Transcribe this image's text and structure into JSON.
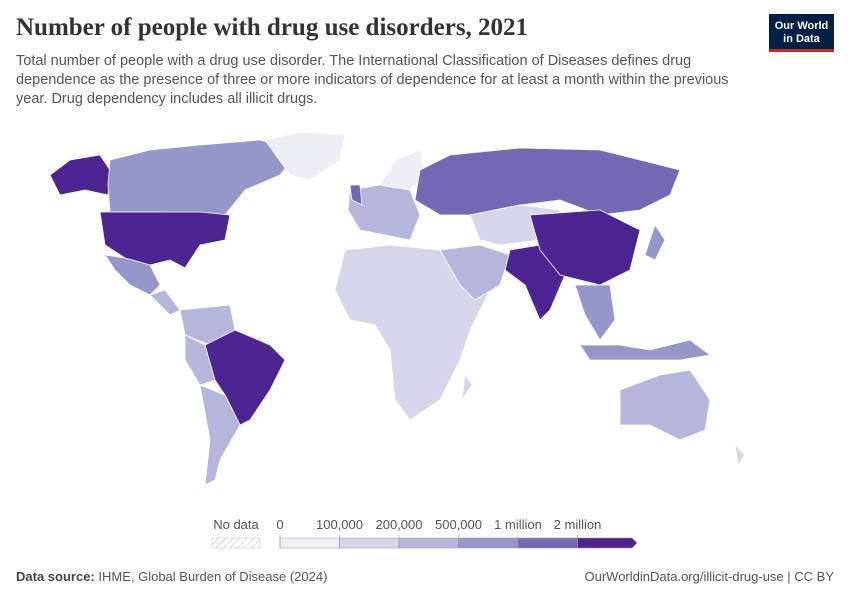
{
  "header": {
    "title": "Number of people with drug use disorders, 2021",
    "subtitle": "Total number of people with a drug use disorder. The International Classification of Diseases defines drug dependence as the presence of three or more indicators of dependence for at least a month within the previous year. Drug dependency includes all illicit drugs.",
    "logo": [
      "Our World",
      "in Data"
    ]
  },
  "legend": {
    "no_data": "No data",
    "ticks": [
      0,
      {
        "value": 100000,
        "label": "100,000"
      },
      {
        "value": 200000,
        "label": "200,000"
      },
      {
        "value": 500000,
        "label": "500,000"
      },
      {
        "value": 1000000,
        "label": "1 million"
      },
      {
        "value": 2000000,
        "label": "2 million"
      }
    ],
    "colors": [
      "#eeeef6",
      "#d6d6ea",
      "#b5b6dc",
      "#9596c9",
      "#7467b4",
      "#4d2593"
    ]
  },
  "footer": {
    "source_label": "Data source:",
    "source": "IHME, Global Burden of Disease (2024)",
    "url": "OurWorldinData.org/illicit-drug-use | CC BY"
  }
}
